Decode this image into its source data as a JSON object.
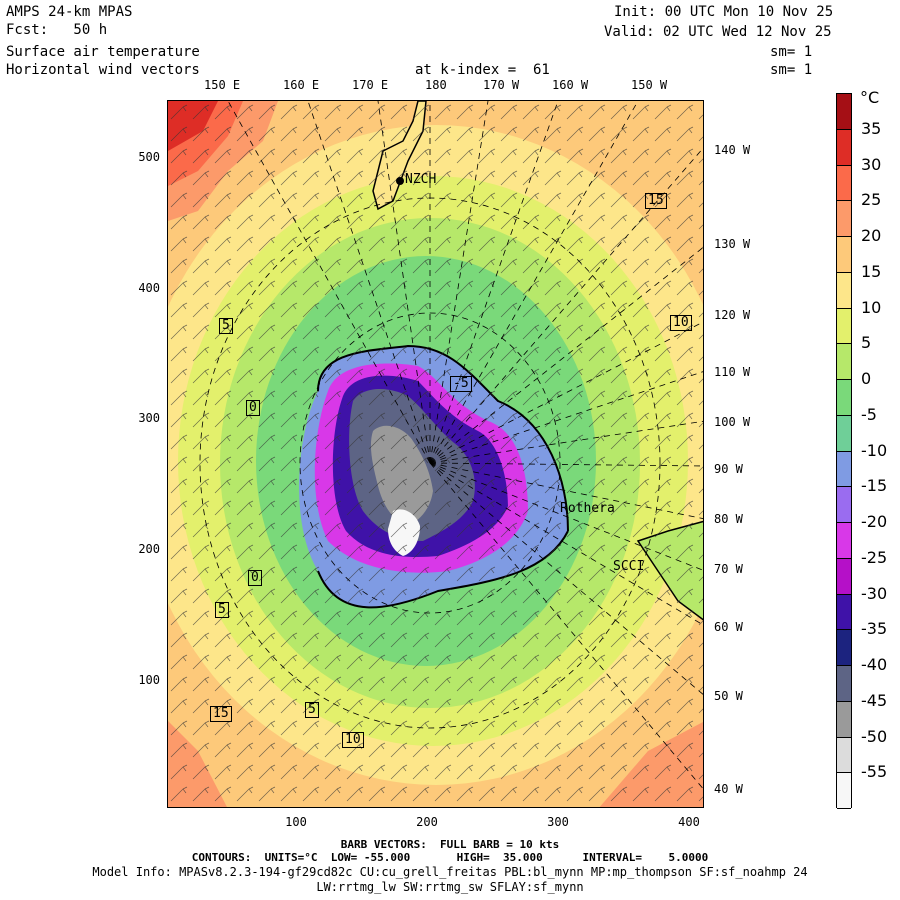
{
  "header": {
    "line1_left": "AMPS 24-km MPAS",
    "line2_left": "Fcst:   50 h",
    "line3_left": "Surface air temperature",
    "line4_left": "Horizontal wind vectors",
    "k_index": "at k-index =  61",
    "init": "Init: 00 UTC Mon 10 Nov 25",
    "valid": "Valid: 02 UTC Wed 12 Nov 25",
    "sm1": "sm= 1",
    "sm2": "sm= 1"
  },
  "lon_labels": [
    "150 E",
    "160 E",
    "170 E",
    "180",
    "170 W",
    "160 W",
    "150 W"
  ],
  "lat_labels": [
    "140 W",
    "130 W",
    "120 W",
    "110 W",
    "100 W",
    "90 W",
    "80 W",
    "70 W",
    "60 W",
    "50 W",
    "40 W"
  ],
  "y_ticks": [
    "500",
    "400",
    "300",
    "200",
    "100"
  ],
  "x_ticks": [
    "100",
    "200",
    "300",
    "400"
  ],
  "stations": [
    "NZCH",
    "Rothera",
    "SCCI"
  ],
  "contour_labels": [
    "15",
    "10",
    "5",
    "0",
    "-5",
    "0",
    "5",
    "15",
    "5",
    "10"
  ],
  "colorbar": {
    "unit": "°C",
    "labels": [
      "35",
      "30",
      "25",
      "20",
      "15",
      "10",
      "5",
      "0",
      "-5",
      "-10",
      "-15",
      "-20",
      "-25",
      "-30",
      "-35",
      "-40",
      "-45",
      "-50",
      "-55"
    ],
    "colors": [
      "#a50f15",
      "#de2d26",
      "#fb6a4a",
      "#fc9a6a",
      "#fdc97a",
      "#fde68a",
      "#e3f06c",
      "#b6e86a",
      "#7ad97a",
      "#6fcf98",
      "#7f9be3",
      "#9a6cf0",
      "#d838e8",
      "#b510c8",
      "#3f12a8",
      "#1c237f",
      "#5d6485",
      "#9a9a9a",
      "#dcdcdc",
      "#f7f7f7"
    ]
  },
  "footer": {
    "barb": "BARB VECTORS:  FULL BARB = 10 kts",
    "contours": "CONTOURS:  UNITS=°C  LOW= -55.000       HIGH=  35.000      INTERVAL=    5.0000",
    "model1": "Model Info: MPASv8.2.3-194-gf29cd82c CU:cu_grell_freitas PBL:bl_mynn MP:mp_thompson SF:sf_noahmp 24",
    "model2": "LW:rrtmg_lw SW:rrtmg_sw SFLAY:sf_mynn"
  }
}
